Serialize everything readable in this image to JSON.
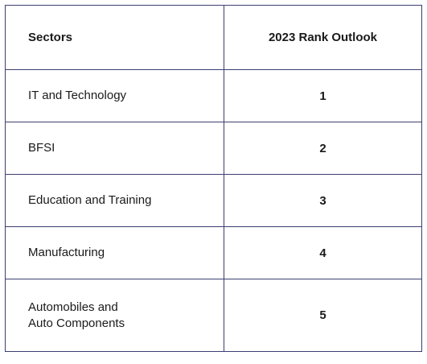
{
  "table": {
    "headers": [
      "Sectors",
      "2023 Rank Outlook"
    ],
    "rows": [
      {
        "sector": "IT and Technology",
        "rank": "1"
      },
      {
        "sector": "BFSI",
        "rank": "2"
      },
      {
        "sector": "Education and Training",
        "rank": "3"
      },
      {
        "sector": "Manufacturing",
        "rank": "4"
      },
      {
        "sector_line1": "Automobiles and",
        "sector_line2": "Auto Components",
        "rank": "5"
      }
    ]
  }
}
